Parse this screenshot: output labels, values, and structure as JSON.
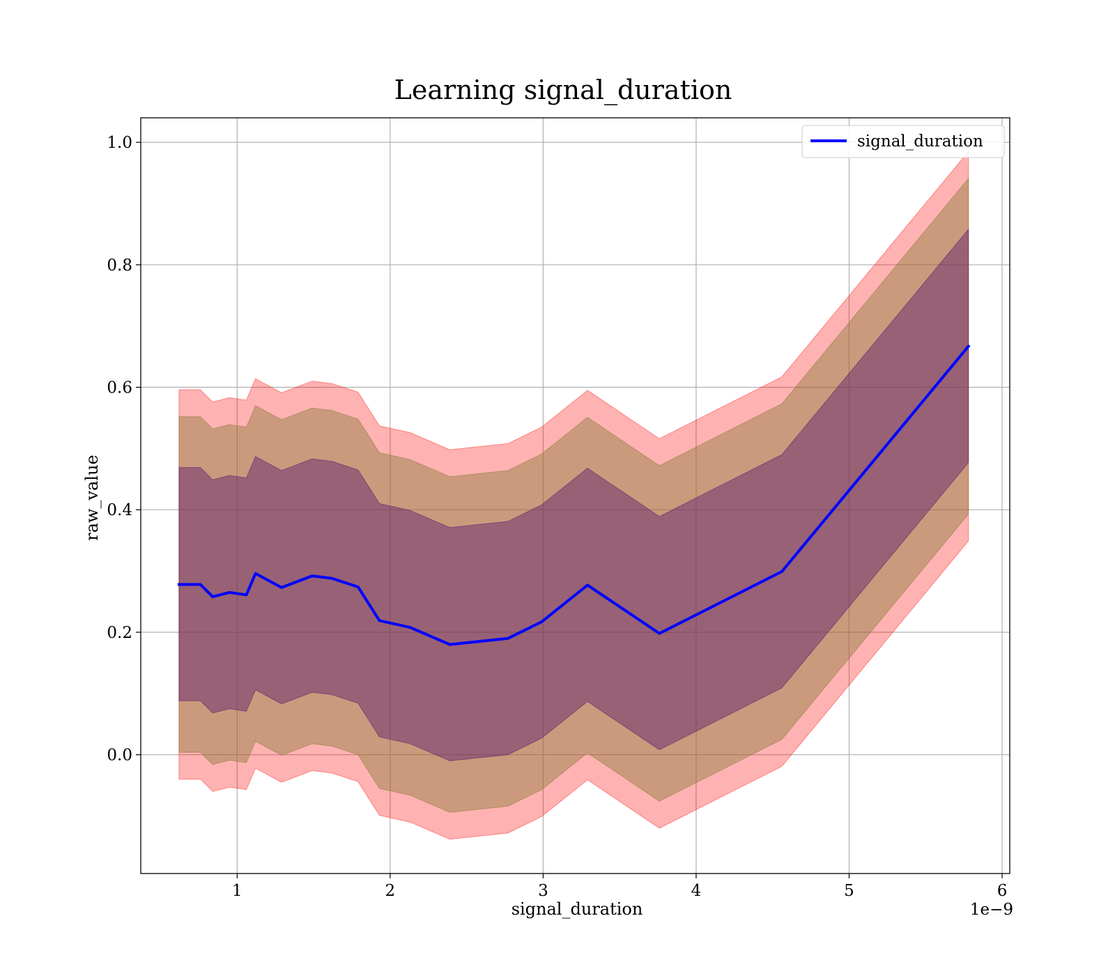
{
  "chart_data": {
    "type": "line",
    "title": "Learning signal_duration",
    "xlabel": "signal_duration",
    "ylabel": "raw_value",
    "x_offset_label": "1e−9",
    "xlim": [
      0.37,
      6.05
    ],
    "ylim": [
      -0.194,
      1.04
    ],
    "x_ticks": [
      1,
      2,
      3,
      4,
      5,
      6
    ],
    "x_tick_labels": [
      "1",
      "2",
      "3",
      "4",
      "5",
      "6"
    ],
    "y_ticks": [
      0.0,
      0.2,
      0.4,
      0.6,
      0.8,
      1.0
    ],
    "y_tick_labels": [
      "0.0",
      "0.2",
      "0.4",
      "0.6",
      "0.8",
      "1.0"
    ],
    "grid": true,
    "legend_position": "top-right",
    "x": [
      0.62,
      0.76,
      0.84,
      0.95,
      1.06,
      1.12,
      1.29,
      1.49,
      1.62,
      1.79,
      1.93,
      2.13,
      2.39,
      2.77,
      2.99,
      3.29,
      3.76,
      4.56,
      5.78
    ],
    "series": [
      {
        "name": "signal_duration",
        "color": "#0000ff",
        "values": [
          0.278,
          0.278,
          0.258,
          0.265,
          0.261,
          0.296,
          0.273,
          0.292,
          0.288,
          0.274,
          0.219,
          0.208,
          0.18,
          0.19,
          0.217,
          0.277,
          0.198,
          0.299,
          0.667
        ]
      }
    ],
    "bands": [
      {
        "color": "#ff0000",
        "opacity": 0.3,
        "upper": [
          0.596,
          0.596,
          0.576,
          0.583,
          0.579,
          0.614,
          0.591,
          0.61,
          0.606,
          0.592,
          0.537,
          0.526,
          0.498,
          0.508,
          0.535,
          0.595,
          0.516,
          0.617,
          0.985
        ],
        "lower": [
          -0.04,
          -0.04,
          -0.06,
          -0.053,
          -0.057,
          -0.022,
          -0.045,
          -0.026,
          -0.03,
          -0.044,
          -0.099,
          -0.11,
          -0.138,
          -0.128,
          -0.101,
          -0.041,
          -0.12,
          -0.019,
          0.349
        ]
      },
      {
        "color": "#8b7c3c",
        "opacity": 0.45,
        "upper": [
          0.552,
          0.552,
          0.532,
          0.539,
          0.535,
          0.57,
          0.547,
          0.566,
          0.562,
          0.548,
          0.493,
          0.482,
          0.454,
          0.464,
          0.491,
          0.551,
          0.472,
          0.573,
          0.941
        ],
        "lower": [
          0.004,
          0.004,
          -0.016,
          -0.009,
          -0.013,
          0.022,
          -0.001,
          0.018,
          0.014,
          0.0,
          -0.055,
          -0.066,
          -0.094,
          -0.084,
          -0.057,
          0.003,
          -0.076,
          0.025,
          0.393
        ]
      },
      {
        "color": "#5c1d6e",
        "opacity": 0.45,
        "upper": [
          0.469,
          0.469,
          0.449,
          0.456,
          0.452,
          0.487,
          0.464,
          0.483,
          0.479,
          0.465,
          0.41,
          0.399,
          0.371,
          0.381,
          0.408,
          0.468,
          0.389,
          0.49,
          0.858
        ],
        "lower": [
          0.088,
          0.088,
          0.068,
          0.075,
          0.071,
          0.106,
          0.083,
          0.102,
          0.098,
          0.084,
          0.029,
          0.018,
          -0.01,
          0.0,
          0.027,
          0.087,
          0.008,
          0.109,
          0.477
        ]
      }
    ]
  }
}
